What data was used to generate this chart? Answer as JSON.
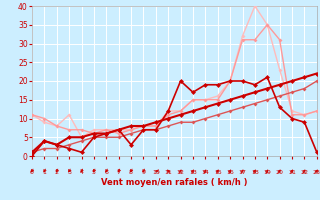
{
  "bg_color": "#cceeff",
  "grid_color": "#ffffff",
  "xlabel": "Vent moyen/en rafales ( km/h )",
  "xlabel_color": "#cc0000",
  "tick_color": "#cc0000",
  "arrow_color": "#cc0000",
  "xlim": [
    0,
    23
  ],
  "ylim": [
    0,
    40
  ],
  "xticks": [
    0,
    1,
    2,
    3,
    4,
    5,
    6,
    7,
    8,
    9,
    10,
    11,
    12,
    13,
    14,
    15,
    16,
    17,
    18,
    19,
    20,
    21,
    22,
    23
  ],
  "yticks": [
    0,
    5,
    10,
    15,
    20,
    25,
    30,
    35,
    40
  ],
  "series": [
    {
      "x": [
        0,
        1,
        2,
        3,
        4,
        5,
        6,
        7,
        8,
        9,
        10,
        11,
        12,
        13,
        14,
        15,
        16,
        17,
        18,
        19,
        20,
        21,
        22,
        23
      ],
      "y": [
        11,
        9,
        8,
        11,
        5,
        7,
        7,
        7,
        7,
        8,
        8,
        12,
        12,
        15,
        15,
        16,
        20,
        32,
        40,
        35,
        23,
        12,
        11,
        12
      ],
      "color": "#ffbbbb",
      "lw": 1.0,
      "marker": "D",
      "markersize": 2.0,
      "alpha": 1.0
    },
    {
      "x": [
        0,
        1,
        2,
        3,
        4,
        5,
        6,
        7,
        8,
        9,
        10,
        11,
        12,
        13,
        14,
        15,
        16,
        17,
        18,
        19,
        20,
        21,
        22,
        23
      ],
      "y": [
        11,
        10,
        8,
        7,
        7,
        6,
        7,
        6,
        7,
        8,
        8,
        11,
        12,
        15,
        15,
        15,
        20,
        31,
        31,
        35,
        31,
        11,
        11,
        12
      ],
      "color": "#ff9999",
      "lw": 1.0,
      "marker": "D",
      "markersize": 2.0,
      "alpha": 1.0
    },
    {
      "x": [
        0,
        1,
        2,
        3,
        4,
        5,
        6,
        7,
        8,
        9,
        10,
        11,
        12,
        13,
        14,
        15,
        16,
        17,
        18,
        19,
        20,
        21,
        22,
        23
      ],
      "y": [
        1,
        2,
        2,
        3,
        4,
        5,
        5,
        5,
        6,
        7,
        7,
        8,
        9,
        9,
        10,
        11,
        12,
        13,
        14,
        15,
        16,
        17,
        18,
        20
      ],
      "color": "#dd5555",
      "lw": 1.0,
      "marker": "D",
      "markersize": 2.0,
      "alpha": 1.0
    },
    {
      "x": [
        0,
        1,
        2,
        3,
        4,
        5,
        6,
        7,
        8,
        9,
        10,
        11,
        12,
        13,
        14,
        15,
        16,
        17,
        18,
        19,
        20,
        21,
        22,
        23
      ],
      "y": [
        0,
        4,
        3,
        2,
        1,
        5,
        6,
        7,
        3,
        7,
        7,
        12,
        20,
        17,
        19,
        19,
        20,
        20,
        19,
        21,
        13,
        10,
        9,
        1
      ],
      "color": "#cc0000",
      "lw": 1.2,
      "marker": "D",
      "markersize": 2.5,
      "alpha": 1.0
    },
    {
      "x": [
        0,
        1,
        2,
        3,
        4,
        5,
        6,
        7,
        8,
        9,
        10,
        11,
        12,
        13,
        14,
        15,
        16,
        17,
        18,
        19,
        20,
        21,
        22,
        23
      ],
      "y": [
        1,
        4,
        3,
        5,
        5,
        6,
        6,
        7,
        8,
        8,
        9,
        10,
        11,
        12,
        13,
        14,
        15,
        16,
        17,
        18,
        19,
        20,
        21,
        22
      ],
      "color": "#cc0000",
      "lw": 1.5,
      "marker": "D",
      "markersize": 2.5,
      "alpha": 1.0
    }
  ],
  "wind_dirs": [
    -135,
    -135,
    -135,
    -135,
    -135,
    -135,
    -135,
    -135,
    -135,
    -135,
    -90,
    -45,
    45,
    45,
    45,
    45,
    45,
    45,
    45,
    45,
    45,
    45,
    45,
    45
  ]
}
